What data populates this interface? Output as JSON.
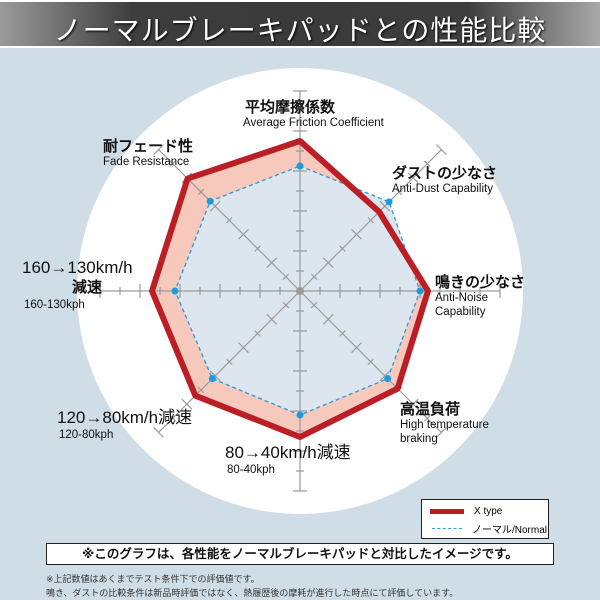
{
  "header": {
    "title": "ノーマルブレーキパッドとの性能比較"
  },
  "chart_data": {
    "type": "radar",
    "title": "ノーマルブレーキパッドとの性能比較",
    "scale": [
      0,
      10
    ],
    "grid": "axes with tick marks, no value labels",
    "categories": [
      {
        "jp": "平均摩擦係数",
        "en": "Average Friction Coefficient"
      },
      {
        "jp": "ダストの少なさ",
        "en": "Anti-Dust Capability"
      },
      {
        "jp": "鳴きの少なさ",
        "en": "Anti-Noise Capability"
      },
      {
        "jp": "高温負荷",
        "en": "High temperature braking"
      },
      {
        "jp": "80→40km/h減速",
        "en": "80-40kph"
      },
      {
        "jp": "120→80km/h減速",
        "en": "120-80kph"
      },
      {
        "jp": "160→130km/h減速",
        "en": "160-130kph"
      },
      {
        "jp": "耐フェード性",
        "en": "Fade Resistance"
      }
    ],
    "series": [
      {
        "name": "X type",
        "color": "#bb1e24",
        "style": "solid-thick",
        "fill": "#f7c9bd",
        "values": [
          7.5,
          5.6,
          6.4,
          6.9,
          7.3,
          7.4,
          7.4,
          7.95
        ]
      },
      {
        "name": "ノーマル/Normal",
        "color": "#3a9bd0",
        "style": "dashed",
        "fill": "#dde6ee",
        "values": [
          6.25,
          6.3,
          6.0,
          6.2,
          6.2,
          6.2,
          6.25,
          6.35
        ]
      }
    ],
    "legend_position": "bottom-right"
  },
  "labels": {
    "friction": {
      "jp": "平均摩擦係数",
      "en": "Average Friction Coefficient"
    },
    "dust": {
      "jp": "ダストの少なさ",
      "en": "Anti-Dust Capability"
    },
    "noise": {
      "jp": "鳴きの少なさ",
      "en1": "Anti-Noise",
      "en2": "Capability"
    },
    "hightemp": {
      "jp": "高温負荷",
      "en1": "High temperature",
      "en2": "braking"
    },
    "s80": {
      "jp": "80→40km/h減速",
      "en": "80-40kph"
    },
    "s120": {
      "jp": "120→80km/h減速",
      "en": "120-80kph"
    },
    "s160": {
      "jp1": "160→130km/h",
      "jp2": "減速",
      "en": "160-130kph"
    },
    "fade": {
      "jp": "耐フェード性",
      "en": "Fade Resistance"
    }
  },
  "legend": {
    "x_type": "X type",
    "normal": "ノーマル/Normal"
  },
  "note": "※このグラフは、各性能をノーマルブレーキパッドと対比したイメージです。",
  "footnotes": [
    "※上記数値はあくまでテスト条件下での評価値です。",
    "鳴き、ダストの比較条件は新品時評価ではなく、熱履歴後の摩耗が進行した時点にて評価しています。"
  ]
}
